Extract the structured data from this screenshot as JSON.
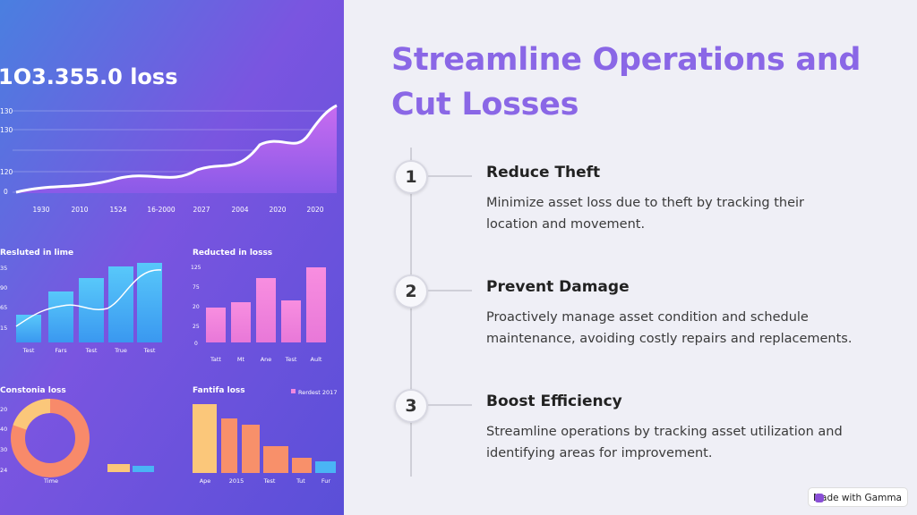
{
  "title_lines": [
    "Streamline Operations and",
    "Cut Losses"
  ],
  "steps": [
    {
      "number": "1",
      "heading": "Reduce Theft",
      "text_lines": [
        "Minimize asset loss due to theft by tracking their",
        "location and movement."
      ]
    },
    {
      "number": "2",
      "heading": "Prevent Damage",
      "text_lines": [
        "Proactively manage asset condition and schedule",
        "maintenance, avoiding costly repairs and replacements."
      ]
    },
    {
      "number": "3",
      "heading": "Boost Efficiency",
      "text_lines": [
        "Streamline operations by tracking asset utilization and",
        "identifying areas for improvement."
      ]
    }
  ],
  "badge": "Made with Gamma",
  "image": {
    "headline": "1O3.355.0 loss",
    "main_chart": {
      "y_labels": [
        "130",
        "130",
        "120",
        "0"
      ],
      "x_labels": [
        "1930",
        "2010",
        "1524",
        "16-2000",
        "2027",
        "2004",
        "2020",
        "2020"
      ]
    },
    "panel_a": {
      "title": "Resluted in lime",
      "y_labels": [
        "35",
        "90",
        "65",
        "15"
      ],
      "x_labels": [
        "Test",
        "Fars",
        "Test",
        "True",
        "Test"
      ]
    },
    "panel_b": {
      "title": "Reducted in losss",
      "y_labels": [
        "125",
        "75",
        "20",
        "25",
        "0"
      ],
      "x_labels": [
        "Tatt",
        "Mt",
        "Ane",
        "Test",
        "Ault"
      ]
    },
    "panel_c": {
      "title": "Constonia loss",
      "y_labels": [
        "20",
        "40",
        "30",
        "24"
      ],
      "x_label": "Time"
    },
    "panel_d": {
      "title": "Fantifa loss",
      "legend": "Rerdest 2017",
      "x_labels": [
        "Ape",
        "2015",
        "Test",
        "Tut",
        "Fur"
      ]
    }
  }
}
